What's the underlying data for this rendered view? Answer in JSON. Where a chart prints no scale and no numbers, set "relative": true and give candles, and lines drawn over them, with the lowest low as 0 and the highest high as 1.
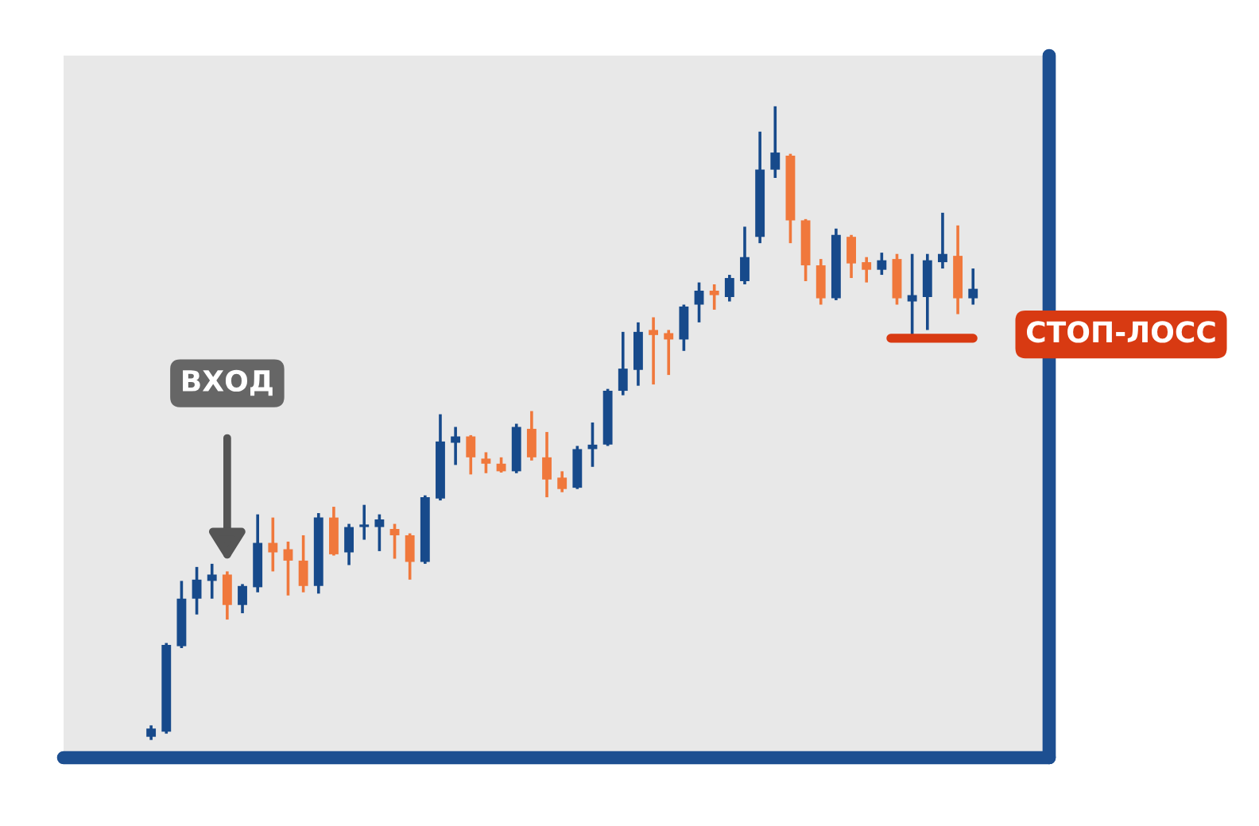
{
  "chart_data": {
    "type": "candlestick",
    "relative": true,
    "categories": [
      null,
      null,
      null,
      null,
      null,
      null,
      null,
      null,
      null,
      null,
      null,
      null,
      null,
      null,
      null,
      null,
      null,
      null,
      null,
      null,
      null,
      null,
      null,
      null,
      null,
      null,
      null,
      null,
      null,
      null,
      null,
      null,
      null,
      null,
      null,
      null,
      null,
      null,
      null,
      null,
      null,
      null,
      null,
      null,
      null,
      null,
      null,
      null,
      null,
      null,
      null,
      null,
      null,
      null,
      null
    ],
    "ohlc": [
      [
        0.005,
        0.023,
        0,
        0.018
      ],
      [
        0.013,
        0.153,
        0.01,
        0.15
      ],
      [
        0.148,
        0.251,
        0.145,
        0.223
      ],
      [
        0.223,
        0.273,
        0.198,
        0.253
      ],
      [
        0.251,
        0.278,
        0.223,
        0.261
      ],
      [
        0.261,
        0.266,
        0.19,
        0.213
      ],
      [
        0.213,
        0.246,
        0.2,
        0.243
      ],
      [
        0.241,
        0.356,
        0.233,
        0.311
      ],
      [
        0.311,
        0.351,
        0.266,
        0.296
      ],
      [
        0.301,
        0.313,
        0.228,
        0.283
      ],
      [
        0.283,
        0.323,
        0.233,
        0.243
      ],
      [
        0.243,
        0.358,
        0.231,
        0.351
      ],
      [
        0.351,
        0.368,
        0.291,
        0.293
      ],
      [
        0.296,
        0.341,
        0.276,
        0.336
      ],
      [
        0.336,
        0.371,
        0.316,
        0.338
      ],
      [
        0.336,
        0.356,
        0.298,
        0.348
      ],
      [
        0.333,
        0.341,
        0.286,
        0.323
      ],
      [
        0.323,
        0.326,
        0.253,
        0.281
      ],
      [
        0.281,
        0.386,
        0.278,
        0.383
      ],
      [
        0.381,
        0.514,
        0.378,
        0.471
      ],
      [
        0.469,
        0.494,
        0.434,
        0.479
      ],
      [
        0.479,
        0.481,
        0.419,
        0.446
      ],
      [
        0.444,
        0.454,
        0.421,
        0.436
      ],
      [
        0.436,
        0.446,
        0.422,
        0.424
      ],
      [
        0.424,
        0.499,
        0.421,
        0.494
      ],
      [
        0.491,
        0.519,
        0.441,
        0.446
      ],
      [
        0.446,
        0.486,
        0.383,
        0.411
      ],
      [
        0.414,
        0.424,
        0.391,
        0.396
      ],
      [
        0.398,
        0.464,
        0.396,
        0.459
      ],
      [
        0.459,
        0.501,
        0.431,
        0.466
      ],
      [
        0.466,
        0.554,
        0.464,
        0.551
      ],
      [
        0.551,
        0.644,
        0.544,
        0.586
      ],
      [
        0.584,
        0.659,
        0.559,
        0.644
      ],
      [
        0.647,
        0.667,
        0.561,
        0.639
      ],
      [
        0.642,
        0.647,
        0.576,
        0.632
      ],
      [
        0.632,
        0.687,
        0.614,
        0.684
      ],
      [
        0.687,
        0.722,
        0.659,
        0.709
      ],
      [
        0.709,
        0.719,
        0.679,
        0.702
      ],
      [
        0.699,
        0.734,
        0.692,
        0.729
      ],
      [
        0.724,
        0.81,
        0.719,
        0.762
      ],
      [
        0.794,
        0.96,
        0.784,
        0.9
      ],
      [
        0.9,
        1,
        0.887,
        0.927
      ],
      [
        0.922,
        0.925,
        0.784,
        0.82
      ],
      [
        0.82,
        0.822,
        0.724,
        0.749
      ],
      [
        0.749,
        0.759,
        0.687,
        0.697
      ],
      [
        0.697,
        0.807,
        0.694,
        0.797
      ],
      [
        0.794,
        0.797,
        0.729,
        0.752
      ],
      [
        0.754,
        0.762,
        0.722,
        0.742
      ],
      [
        0.742,
        0.769,
        0.734,
        0.757
      ],
      [
        0.759,
        0.767,
        0.687,
        0.697
      ],
      [
        0.692,
        0.767,
        0.637,
        0.702
      ],
      [
        0.699,
        0.767,
        0.647,
        0.757
      ],
      [
        0.754,
        0.832,
        0.744,
        0.767
      ],
      [
        0.764,
        0.812,
        0.672,
        0.697
      ],
      [
        0.697,
        0.744,
        0.687,
        0.712
      ]
    ],
    "colors": [
      "#174a8b",
      "#174a8b",
      "#174a8b",
      "#174a8b",
      "#174a8b",
      "#f0783c",
      "#174a8b",
      "#174a8b",
      "#f0783c",
      "#f0783c",
      "#f0783c",
      "#174a8b",
      "#f0783c",
      "#174a8b",
      "#174a8b",
      "#174a8b",
      "#f0783c",
      "#f0783c",
      "#174a8b",
      "#174a8b",
      "#174a8b",
      "#f0783c",
      "#f0783c",
      "#f0783c",
      "#174a8b",
      "#f0783c",
      "#f0783c",
      "#f0783c",
      "#174a8b",
      "#174a8b",
      "#174a8b",
      "#174a8b",
      "#174a8b",
      "#f0783c",
      "#f0783c",
      "#174a8b",
      "#174a8b",
      "#f0783c",
      "#174a8b",
      "#174a8b",
      "#174a8b",
      "#174a8b",
      "#f0783c",
      "#f0783c",
      "#f0783c",
      "#174a8b",
      "#f0783c",
      "#f0783c",
      "#174a8b",
      "#f0783c",
      "#174a8b",
      "#174a8b",
      "#174a8b",
      "#f0783c",
      "#174a8b"
    ],
    "annotations": [
      "ВХОД"
    ],
    "ref_lines": [
      {
        "axis": "y",
        "value": 0.634,
        "label": "СТОП-ЛОСС",
        "color": "#d83a12"
      }
    ],
    "grid": false,
    "legend": false
  }
}
